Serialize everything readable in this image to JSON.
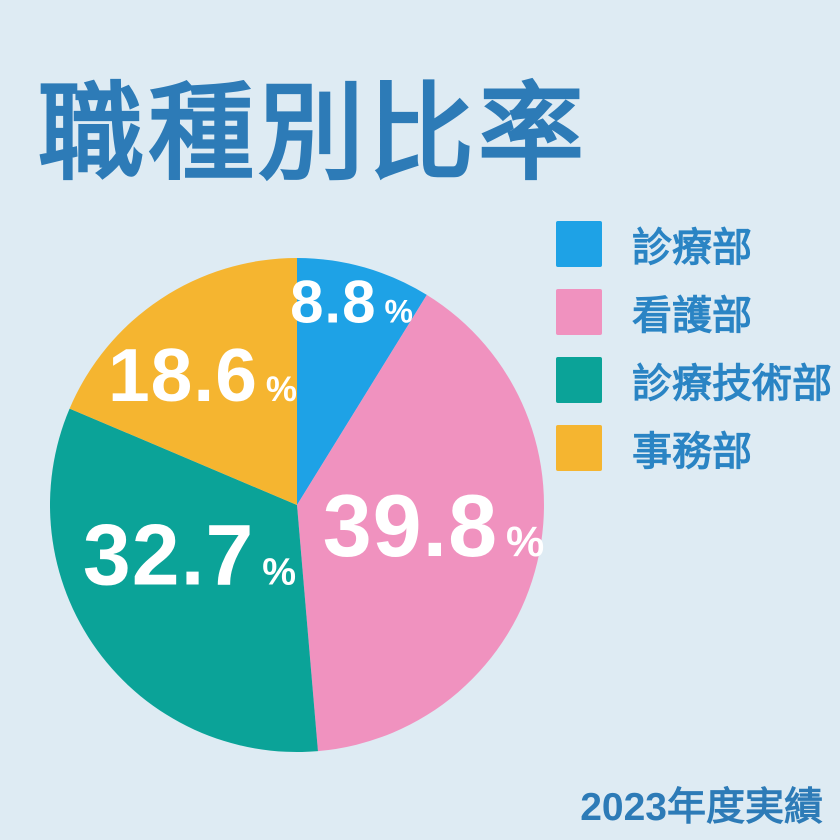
{
  "page": {
    "background_color": "#deebf3",
    "title": "職種別比率",
    "title_color": "#2d7bb7",
    "footer_note": "2023年度実績"
  },
  "chart_data": {
    "type": "pie",
    "title": "職種別比率",
    "start_angle_deg": 0,
    "direction": "clockwise",
    "legend_position": "right",
    "value_label_color": "#ffffff",
    "legend_text_color": "#2a84c4",
    "footer_note": "2023年度実績",
    "slices": [
      {
        "label": "診療部",
        "value": 8.8,
        "unit": "%",
        "color": "#1ea2e6"
      },
      {
        "label": "看護部",
        "value": 39.8,
        "unit": "%",
        "color": "#f092bf"
      },
      {
        "label": "診療技術部",
        "value": 32.7,
        "unit": "%",
        "color": "#0ba398"
      },
      {
        "label": "事務部",
        "value": 18.6,
        "unit": "%",
        "color": "#f5b530"
      }
    ]
  }
}
